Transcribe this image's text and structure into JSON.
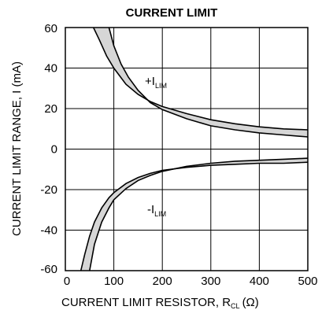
{
  "chart_data": {
    "type": "area",
    "title": "CURRENT LIMIT",
    "xlabel": {
      "main": "CURRENT LIMIT RESISTOR, R",
      "sub": "CL",
      "unit": "(Ω)"
    },
    "ylabel": "CURRENT LIMIT RANGE, I (mA)",
    "xlim": [
      0,
      500
    ],
    "ylim": [
      -60,
      60
    ],
    "x_ticks": [
      "0",
      "100",
      "200",
      "300",
      "400",
      "500"
    ],
    "y_ticks": [
      "60",
      "40",
      "20",
      "0",
      "-20",
      "-40",
      "-60"
    ],
    "grid": true,
    "series": [
      {
        "name": "+I_LIM",
        "label_main": "+I",
        "label_sub": "LIM",
        "upper": {
          "x": [
            58,
            70,
            85,
            100,
            125,
            150,
            175,
            200,
            250,
            300,
            350,
            400,
            450,
            500
          ],
          "y": [
            60,
            54,
            46,
            40,
            32,
            27,
            23.5,
            21,
            17.5,
            14.5,
            12.5,
            11,
            10,
            9.5
          ]
        },
        "lower": {
          "x": [
            90,
            100,
            115,
            130,
            150,
            175,
            200,
            250,
            300,
            350,
            400,
            450,
            500
          ],
          "y": [
            60,
            51,
            42,
            35.5,
            29,
            23,
            19.5,
            15,
            11.5,
            9.5,
            8,
            7,
            6
          ]
        }
      },
      {
        "name": "-I_LIM",
        "label_main": "-I",
        "label_sub": "LIM",
        "upper": {
          "x": [
            50,
            60,
            75,
            90,
            100,
            125,
            150,
            175,
            200,
            250,
            300,
            350,
            400,
            450,
            500
          ],
          "y": [
            -60,
            -47,
            -36,
            -29,
            -25,
            -19.5,
            -15.5,
            -13,
            -11,
            -8.5,
            -7,
            -6,
            -5.5,
            -5,
            -4.5
          ]
        },
        "lower": {
          "x": [
            32,
            40,
            50,
            60,
            75,
            90,
            100,
            125,
            150,
            175,
            200,
            250,
            300,
            350,
            400,
            450,
            500
          ],
          "y": [
            -60,
            -52,
            -43,
            -36,
            -29,
            -24,
            -21.5,
            -17,
            -14,
            -12,
            -10.5,
            -9,
            -8,
            -7.5,
            -7,
            -7,
            -6.5
          ]
        }
      }
    ],
    "fill_color": "#d6d6d6",
    "line_color": "#000000"
  }
}
